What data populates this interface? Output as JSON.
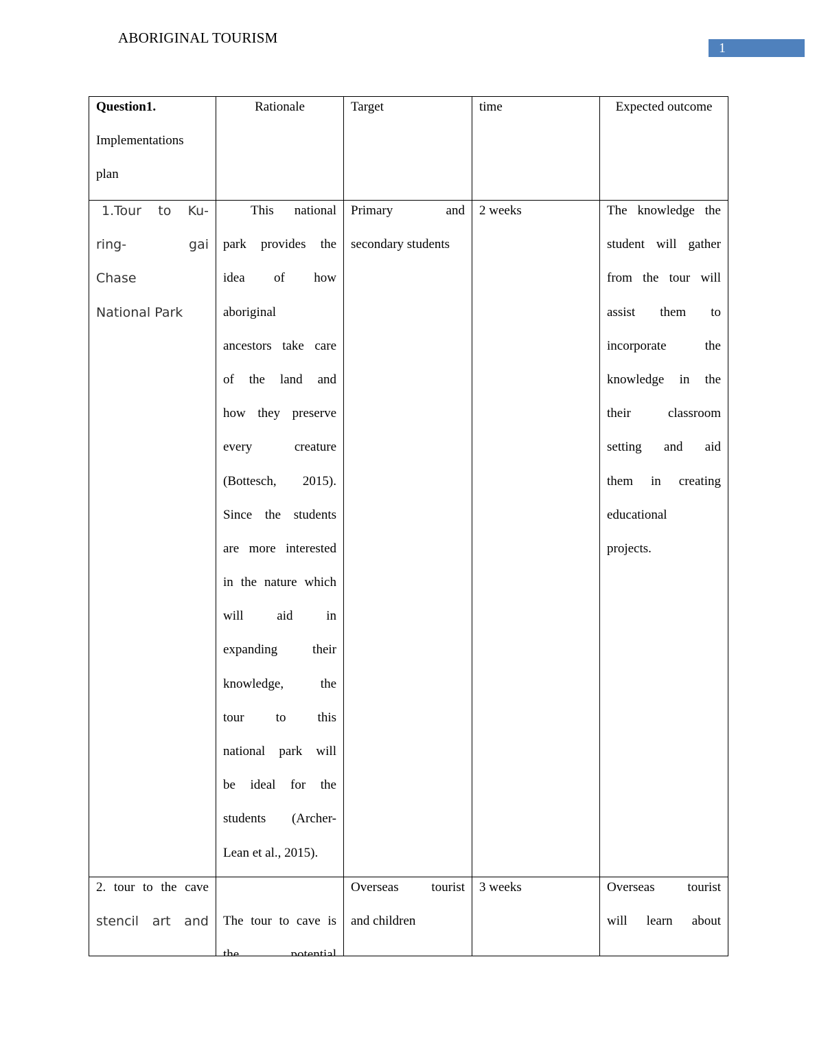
{
  "header": {
    "title": "ABORIGINAL TOURISM",
    "page_number": "1",
    "accent_color": "#4f81bd"
  },
  "table": {
    "header_row": [
      {
        "lines": [
          "Question1.",
          "Implementations",
          "plan"
        ]
      },
      {
        "lines": [
          "Rationale"
        ]
      },
      {
        "lines": [
          "Target"
        ]
      },
      {
        "lines": [
          "time"
        ]
      },
      {
        "lines": [
          "Expected outcome"
        ]
      }
    ],
    "rows": [
      {
        "cells": [
          {
            "lines": [
              "1.Tour to Ku-",
              "ring- gai",
              "Chase",
              "National Park"
            ]
          },
          {
            "lines": [
              "This national",
              "park provides the",
              "idea of how",
              "aboriginal",
              "ancestors take care",
              "of the land and",
              "how they preserve",
              "every creature",
              "(Bottesch, 2015).",
              "Since the students",
              "are more interested",
              "in the nature which",
              "will aid in",
              "expanding their",
              "knowledge, the",
              "tour to this",
              "national park will",
              "be ideal for the",
              "students (Archer-",
              "Lean et al.,  2015)."
            ]
          },
          {
            "lines": [
              "Primary and",
              "secondary students"
            ]
          },
          {
            "lines": [
              "2 weeks"
            ]
          },
          {
            "lines": [
              "The knowledge the",
              "student will gather",
              "from the tour will",
              "assist them to",
              "incorporate the",
              "knowledge in the",
              "their classroom",
              "setting and aid",
              "them in creating",
              "educational",
              "projects."
            ]
          }
        ]
      },
      {
        "cells": [
          {
            "lines": [
              "2.  tour to the cave",
              "stencil art and"
            ]
          },
          {
            "lines": [
              "",
              "The tour to cave is",
              "the potential"
            ]
          },
          {
            "lines": [
              "Overseas tourist",
              "and children"
            ]
          },
          {
            "lines": [
              "3 weeks"
            ]
          },
          {
            "lines": [
              "Overseas tourist",
              "will learn about"
            ]
          }
        ]
      }
    ]
  }
}
